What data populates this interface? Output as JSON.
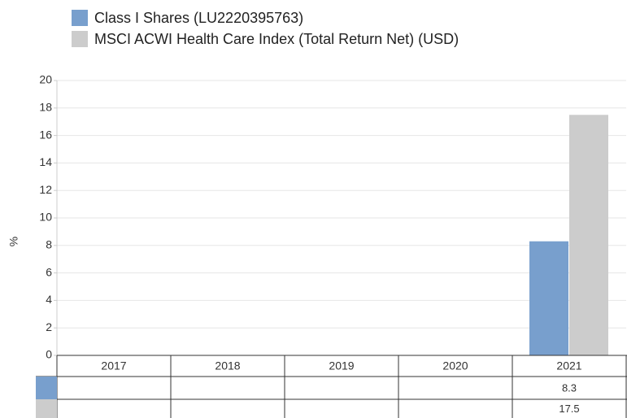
{
  "chart_data": {
    "type": "bar",
    "y_label": "%",
    "categories": [
      "2017",
      "2018",
      "2019",
      "2020",
      "2021"
    ],
    "series": [
      {
        "name": "Class I Shares (LU2220395763)",
        "color": "#789fcd",
        "values": [
          null,
          null,
          null,
          null,
          8.3
        ]
      },
      {
        "name": "MSCI ACWI Health Care Index (Total Return Net) (USD)",
        "color": "#cccccc",
        "values": [
          null,
          null,
          null,
          null,
          17.5
        ]
      }
    ],
    "ylim": [
      0,
      20
    ],
    "yticks": [
      0,
      2,
      4,
      6,
      8,
      10,
      12,
      14,
      16,
      18,
      20
    ],
    "grid": true
  }
}
